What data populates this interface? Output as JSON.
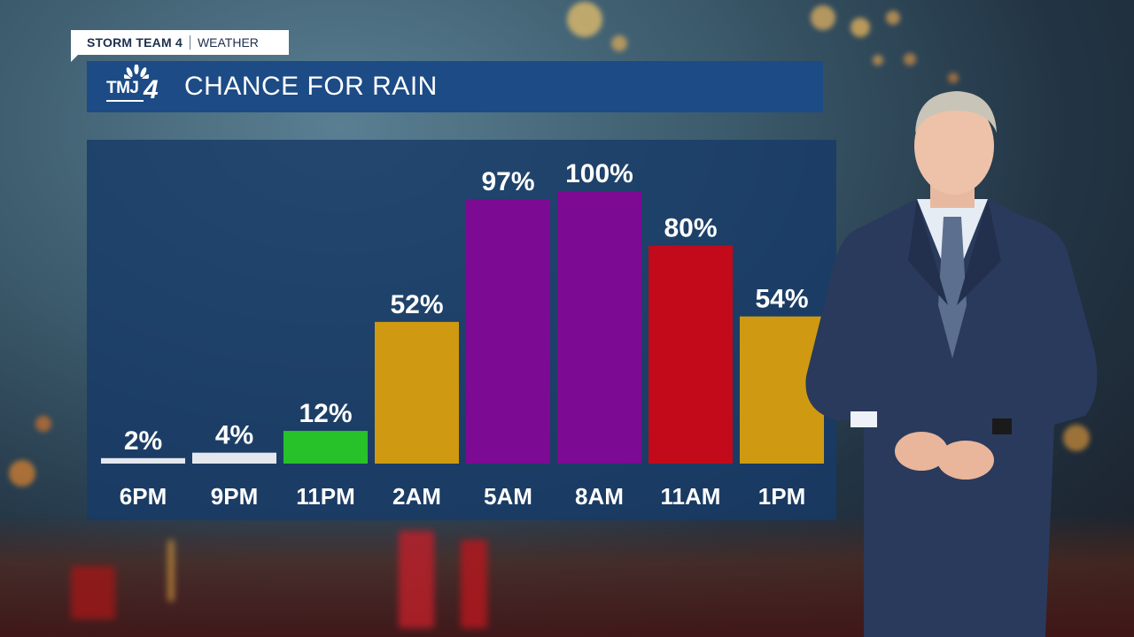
{
  "brand": {
    "show_name": "STORM TEAM 4",
    "segment": "WEATHER",
    "station_logo_text": "TMJ",
    "station_logo_number": "4"
  },
  "header": {
    "title": "CHANCE FOR RAIN"
  },
  "colors": {
    "title_bar": "#1c4b86",
    "panel": "#173a68",
    "low": "#e4e8ee",
    "green": "#27c22a",
    "gold": "#cf9a12",
    "purple": "#7d0a93",
    "red": "#c20a1a"
  },
  "chart_data": {
    "type": "bar",
    "title": "CHANCE FOR RAIN",
    "categories": [
      "6PM",
      "9PM",
      "11PM",
      "2AM",
      "5AM",
      "8AM",
      "11AM",
      "1PM"
    ],
    "values": [
      2,
      4,
      12,
      52,
      97,
      100,
      80,
      54
    ],
    "data_labels": [
      "2%",
      "4%",
      "12%",
      "52%",
      "97%",
      "100%",
      "80%",
      "54%"
    ],
    "bar_colors": [
      "#e4e8ee",
      "#e4e8ee",
      "#27c22a",
      "#cf9a12",
      "#7d0a93",
      "#7d0a93",
      "#c20a1a",
      "#cf9a12"
    ],
    "ylim": [
      0,
      100
    ],
    "grid": false,
    "xlabel": "",
    "ylabel": ""
  }
}
